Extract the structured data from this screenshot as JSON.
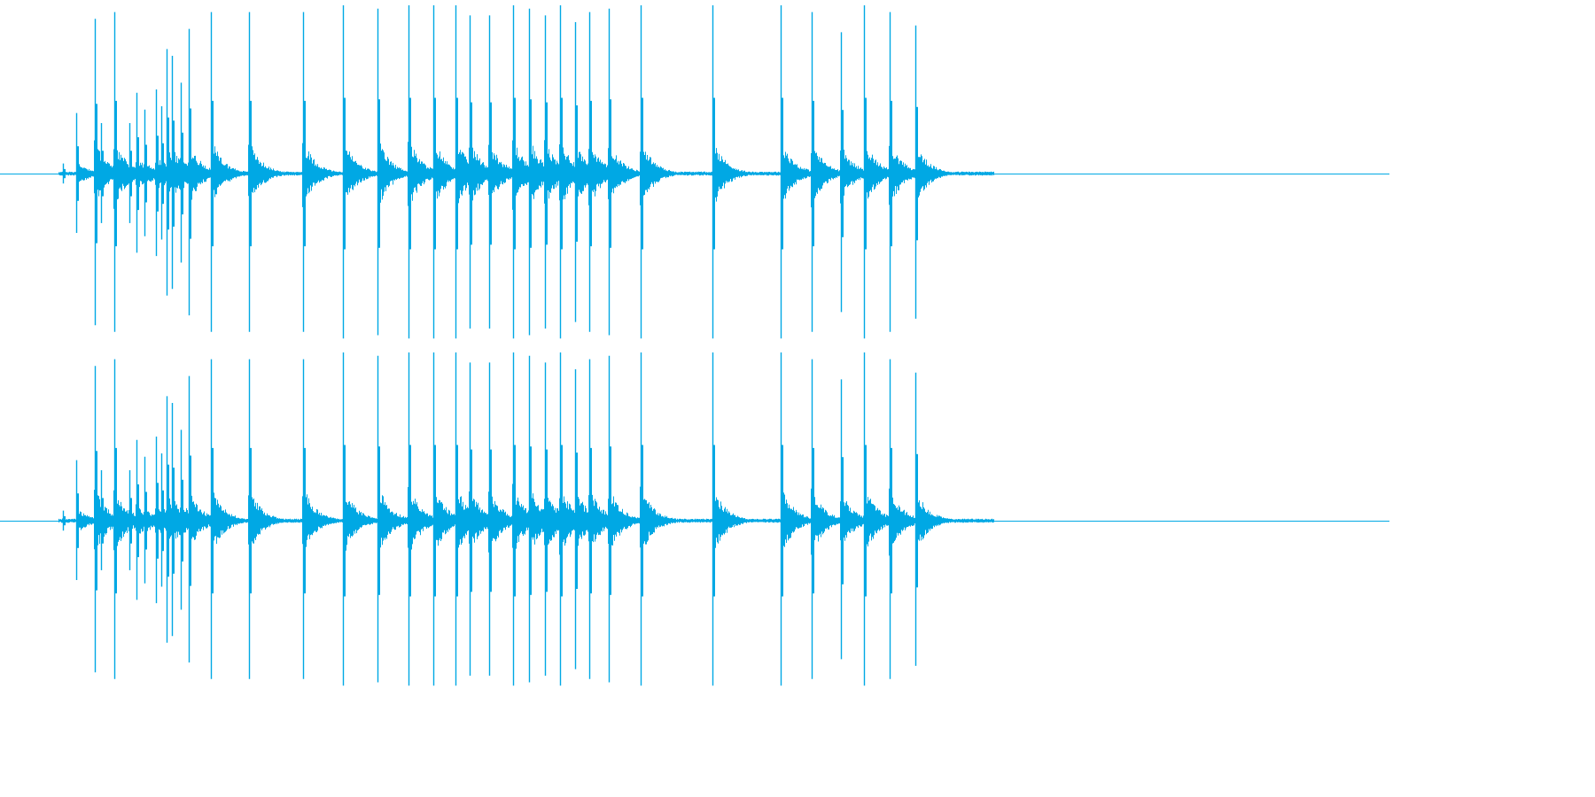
{
  "waveform": {
    "channels": [
      "top",
      "bottom"
    ],
    "color": "#00a8e4",
    "background": "#ffffff",
    "end_of_audio_fraction": 0.715,
    "transients": [
      {
        "t": 0.045,
        "a": 0.06
      },
      {
        "t": 0.055,
        "a": 0.36
      },
      {
        "t": 0.068,
        "a": 0.92
      },
      {
        "t": 0.073,
        "a": 0.3
      },
      {
        "t": 0.082,
        "a": 0.96
      },
      {
        "t": 0.093,
        "a": 0.3
      },
      {
        "t": 0.098,
        "a": 0.48
      },
      {
        "t": 0.104,
        "a": 0.38
      },
      {
        "t": 0.112,
        "a": 0.5
      },
      {
        "t": 0.116,
        "a": 0.4
      },
      {
        "t": 0.12,
        "a": 0.74
      },
      {
        "t": 0.124,
        "a": 0.7
      },
      {
        "t": 0.13,
        "a": 0.54
      },
      {
        "t": 0.136,
        "a": 0.86
      },
      {
        "t": 0.152,
        "a": 0.96
      },
      {
        "t": 0.179,
        "a": 0.96
      },
      {
        "t": 0.218,
        "a": 0.96
      },
      {
        "t": 0.247,
        "a": 1.0
      },
      {
        "t": 0.272,
        "a": 0.98
      },
      {
        "t": 0.294,
        "a": 1.0
      },
      {
        "t": 0.312,
        "a": 1.0
      },
      {
        "t": 0.328,
        "a": 1.0
      },
      {
        "t": 0.338,
        "a": 0.94
      },
      {
        "t": 0.352,
        "a": 0.94
      },
      {
        "t": 0.369,
        "a": 1.0
      },
      {
        "t": 0.381,
        "a": 0.98
      },
      {
        "t": 0.392,
        "a": 0.94
      },
      {
        "t": 0.403,
        "a": 1.0
      },
      {
        "t": 0.414,
        "a": 0.9
      },
      {
        "t": 0.424,
        "a": 0.96
      },
      {
        "t": 0.438,
        "a": 0.98
      },
      {
        "t": 0.461,
        "a": 1.0
      },
      {
        "t": 0.513,
        "a": 1.0
      },
      {
        "t": 0.562,
        "a": 1.0
      },
      {
        "t": 0.584,
        "a": 0.96
      },
      {
        "t": 0.605,
        "a": 0.84
      },
      {
        "t": 0.622,
        "a": 1.0
      },
      {
        "t": 0.64,
        "a": 0.96
      },
      {
        "t": 0.659,
        "a": 0.88
      }
    ]
  }
}
